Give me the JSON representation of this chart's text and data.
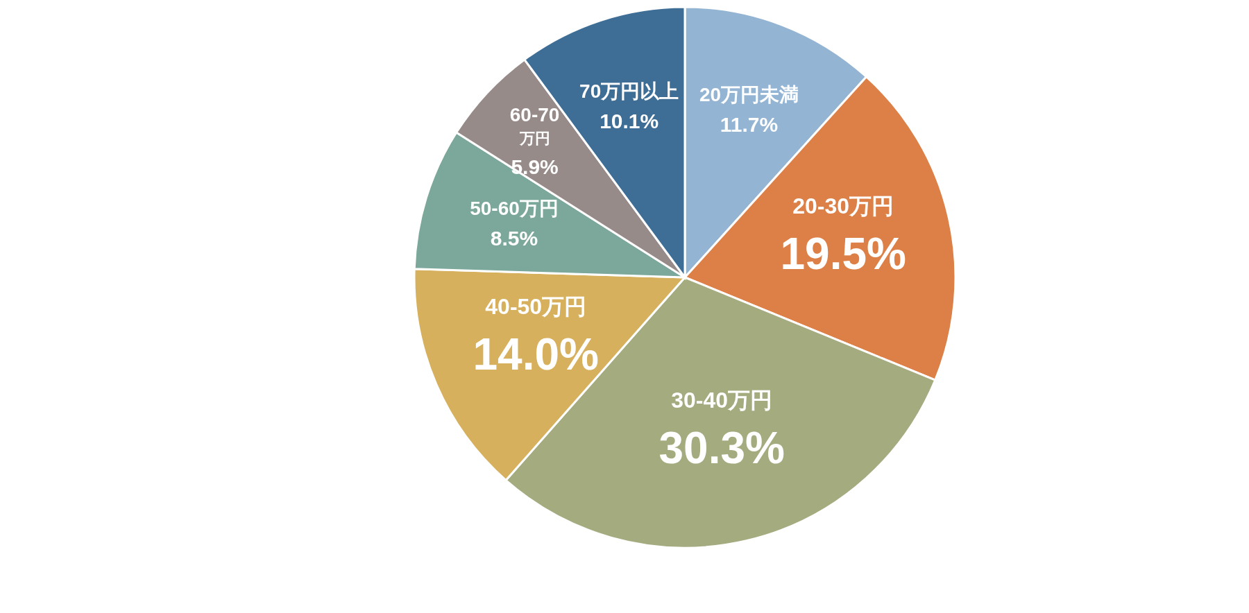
{
  "chart_data": {
    "type": "pie",
    "categories": [
      "20万円未満",
      "20-30万円",
      "30-40万円",
      "40-50万円",
      "50-60万円",
      "60-70万円",
      "70万円以上"
    ],
    "values": [
      11.7,
      19.5,
      30.3,
      14.0,
      8.5,
      5.9,
      10.1
    ],
    "colors": [
      "#94b4d4",
      "#dd8048",
      "#a3ab7f",
      "#d6b05c",
      "#7ba89b",
      "#968b88",
      "#3e6e96"
    ],
    "value_labels": [
      "11.7%",
      "19.5%",
      "30.3%",
      "14.0%",
      "8.5%",
      "5.9%",
      "10.1%"
    ]
  }
}
